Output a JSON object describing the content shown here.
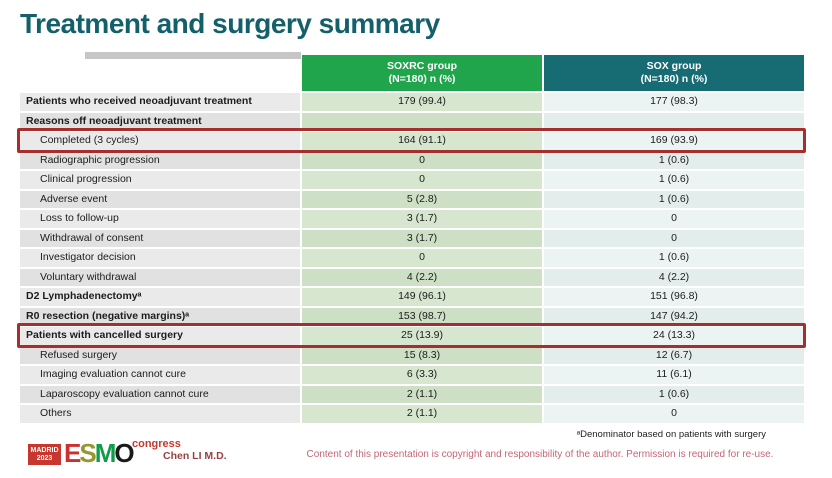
{
  "slide": {
    "title": "Treatment and surgery summary"
  },
  "table": {
    "columns": [
      {
        "label": "SOXRC group",
        "sublabel": "(N=180) n (%)"
      },
      {
        "label": "SOX group",
        "sublabel": "(N=180) n (%)"
      }
    ],
    "rows": [
      {
        "label": "Patients who received neoadjuvant treatment",
        "soxrc": "179 (99.4)",
        "sox": "177 (98.3)",
        "bold": true,
        "indent": false,
        "highlighted": false
      },
      {
        "label": "Reasons off neoadjuvant treatment",
        "soxrc": "",
        "sox": "",
        "bold": true,
        "indent": false,
        "highlighted": false
      },
      {
        "label": "Completed (3 cycles)",
        "soxrc": "164 (91.1)",
        "sox": "169 (93.9)",
        "bold": false,
        "indent": true,
        "highlighted": true
      },
      {
        "label": "Radiographic progression",
        "soxrc": "0",
        "sox": "1 (0.6)",
        "bold": false,
        "indent": true,
        "highlighted": false
      },
      {
        "label": "Clinical progression",
        "soxrc": "0",
        "sox": "1 (0.6)",
        "bold": false,
        "indent": true,
        "highlighted": false
      },
      {
        "label": "Adverse event",
        "soxrc": "5 (2.8)",
        "sox": "1 (0.6)",
        "bold": false,
        "indent": true,
        "highlighted": false
      },
      {
        "label": "Loss to follow-up",
        "soxrc": "3 (1.7)",
        "sox": "0",
        "bold": false,
        "indent": true,
        "highlighted": false
      },
      {
        "label": "Withdrawal of consent",
        "soxrc": "3 (1.7)",
        "sox": "0",
        "bold": false,
        "indent": true,
        "highlighted": false
      },
      {
        "label": "Investigator decision",
        "soxrc": "0",
        "sox": "1 (0.6)",
        "bold": false,
        "indent": true,
        "highlighted": false
      },
      {
        "label": "Voluntary withdrawal",
        "soxrc": "4 (2.2)",
        "sox": "4 (2.2)",
        "bold": false,
        "indent": true,
        "highlighted": false
      },
      {
        "label": "D2 Lymphadenectomyᵃ",
        "soxrc": "149 (96.1)",
        "sox": "151 (96.8)",
        "bold": true,
        "indent": false,
        "highlighted": false
      },
      {
        "label": "R0 resection (negative margins)ᵃ",
        "soxrc": "153 (98.7)",
        "sox": "147 (94.2)",
        "bold": true,
        "indent": false,
        "highlighted": false
      },
      {
        "label": "Patients with cancelled surgery",
        "soxrc": "25 (13.9)",
        "sox": "24 (13.3)",
        "bold": true,
        "indent": false,
        "highlighted": true
      },
      {
        "label": "Refused surgery",
        "soxrc": "15 (8.3)",
        "sox": "12 (6.7)",
        "bold": false,
        "indent": true,
        "highlighted": false
      },
      {
        "label": "Imaging evaluation cannot cure",
        "soxrc": "6 (3.3)",
        "sox": "11 (6.1)",
        "bold": false,
        "indent": true,
        "highlighted": false
      },
      {
        "label": "Laparoscopy evaluation cannot cure",
        "soxrc": "2 (1.1)",
        "sox": "1 (0.6)",
        "bold": false,
        "indent": true,
        "highlighted": false
      },
      {
        "label": "Others",
        "soxrc": "2 (1.1)",
        "sox": "0",
        "bold": false,
        "indent": true,
        "highlighted": false
      }
    ]
  },
  "footer": {
    "footnote": "ᵃDenominator based on patients with surgery",
    "copyright": "Content of this presentation is copyright and responsibility of the author. Permission is required for re-use.",
    "author": "Chen LI M.D.",
    "logo": {
      "city": "MADRID",
      "year": "2023",
      "event": "congress",
      "org_letters": [
        {
          "ch": "E",
          "color": "#cf2e2e"
        },
        {
          "ch": "S",
          "color": "#97972f"
        },
        {
          "ch": "M",
          "color": "#0f9d4b"
        },
        {
          "ch": "O",
          "color": "#1a1a1a"
        }
      ]
    }
  },
  "colors": {
    "title": "#13606b",
    "header_soxrc": "#21a54c",
    "header_sox": "#176b73",
    "col_soxrc_band": "#d6e6cf",
    "col_sox_band": "#ecf4f3",
    "label_band": "#eaeaea",
    "highlight_border": "#a52f2f",
    "copyright_text": "#c46677",
    "logo_red": "#c8372d"
  }
}
